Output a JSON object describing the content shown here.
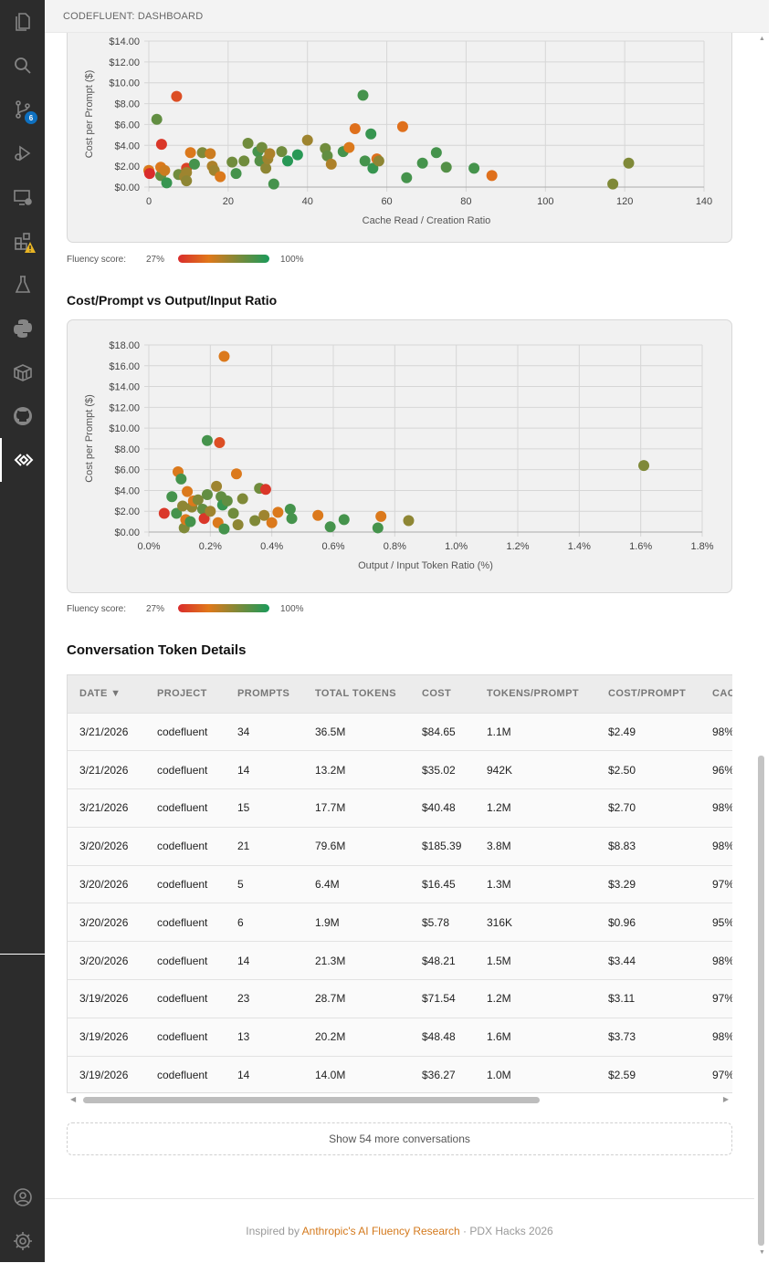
{
  "tab": {
    "title": "CODEFLUENT: DASHBOARD"
  },
  "activity_bar": {
    "icons": [
      "files-icon",
      "search-icon",
      "source-control-icon",
      "run-debug-icon",
      "remote-explorer-icon",
      "extensions-icon",
      "testing-icon",
      "python-icon",
      "containers-icon",
      "github-icon",
      "codefluent-icon",
      "account-icon",
      "settings-gear-icon"
    ],
    "source_control_badge": "6"
  },
  "chart_cache": {
    "chart_data": {
      "type": "scatter",
      "title": "",
      "xlabel": "Cache Read / Creation Ratio",
      "ylabel": "Cost per Prompt ($)",
      "xlim": [
        0,
        140
      ],
      "ylim": [
        0,
        14
      ],
      "x_ticks": [
        "0",
        "20",
        "40",
        "60",
        "80",
        "100",
        "120",
        "140"
      ],
      "y_ticks": [
        "$0.00",
        "$2.00",
        "$4.00",
        "$6.00",
        "$8.00",
        "$10.00",
        "$12.00",
        "$14.00"
      ],
      "grid": true,
      "points": [
        {
          "x": 0,
          "y": 1.6,
          "f": 0.35
        },
        {
          "x": 0.2,
          "y": 1.3,
          "f": 0.0
        },
        {
          "x": 2,
          "y": 6.5,
          "f": 0.75
        },
        {
          "x": 3,
          "y": 1.1,
          "f": 0.75
        },
        {
          "x": 3,
          "y": 1.9,
          "f": 0.35
        },
        {
          "x": 3.2,
          "y": 4.1,
          "f": 0.05
        },
        {
          "x": 4,
          "y": 1.6,
          "f": 0.4
        },
        {
          "x": 4.5,
          "y": 0.4,
          "f": 0.9
        },
        {
          "x": 7,
          "y": 8.7,
          "f": 0.15
        },
        {
          "x": 7.5,
          "y": 1.2,
          "f": 0.7
        },
        {
          "x": 9,
          "y": 1.0,
          "f": 0.55
        },
        {
          "x": 9.5,
          "y": 1.8,
          "f": 0.1
        },
        {
          "x": 9.5,
          "y": 1.4,
          "f": 0.55
        },
        {
          "x": 9.5,
          "y": 0.6,
          "f": 0.6
        },
        {
          "x": 10.5,
          "y": 3.3,
          "f": 0.35
        },
        {
          "x": 11.5,
          "y": 2.2,
          "f": 0.85
        },
        {
          "x": 13.5,
          "y": 3.3,
          "f": 0.65
        },
        {
          "x": 15.5,
          "y": 3.2,
          "f": 0.4
        },
        {
          "x": 16,
          "y": 2.0,
          "f": 0.5
        },
        {
          "x": 16.5,
          "y": 1.6,
          "f": 0.55
        },
        {
          "x": 18,
          "y": 1.0,
          "f": 0.35
        },
        {
          "x": 21,
          "y": 2.4,
          "f": 0.7
        },
        {
          "x": 22,
          "y": 1.3,
          "f": 0.85
        },
        {
          "x": 24,
          "y": 2.5,
          "f": 0.7
        },
        {
          "x": 25,
          "y": 4.2,
          "f": 0.7
        },
        {
          "x": 27.5,
          "y": 3.4,
          "f": 0.85
        },
        {
          "x": 28,
          "y": 2.5,
          "f": 0.8
        },
        {
          "x": 28.5,
          "y": 3.8,
          "f": 0.7
        },
        {
          "x": 29.5,
          "y": 1.8,
          "f": 0.6
        },
        {
          "x": 30,
          "y": 2.7,
          "f": 0.55
        },
        {
          "x": 30.5,
          "y": 3.2,
          "f": 0.5
        },
        {
          "x": 31.5,
          "y": 0.3,
          "f": 0.85
        },
        {
          "x": 33.5,
          "y": 3.4,
          "f": 0.7
        },
        {
          "x": 35,
          "y": 2.5,
          "f": 0.95
        },
        {
          "x": 37.5,
          "y": 3.1,
          "f": 0.95
        },
        {
          "x": 40,
          "y": 4.5,
          "f": 0.55
        },
        {
          "x": 44.5,
          "y": 3.7,
          "f": 0.7
        },
        {
          "x": 45,
          "y": 3.0,
          "f": 0.75
        },
        {
          "x": 46,
          "y": 2.2,
          "f": 0.5
        },
        {
          "x": 49,
          "y": 3.4,
          "f": 0.85
        },
        {
          "x": 50.5,
          "y": 3.8,
          "f": 0.35
        },
        {
          "x": 52,
          "y": 5.6,
          "f": 0.3
        },
        {
          "x": 54,
          "y": 8.8,
          "f": 0.85
        },
        {
          "x": 54.5,
          "y": 2.5,
          "f": 0.85
        },
        {
          "x": 56,
          "y": 5.1,
          "f": 0.9
        },
        {
          "x": 56.5,
          "y": 1.8,
          "f": 0.9
        },
        {
          "x": 57.5,
          "y": 2.7,
          "f": 0.3
        },
        {
          "x": 58,
          "y": 2.5,
          "f": 0.6
        },
        {
          "x": 64,
          "y": 5.8,
          "f": 0.3
        },
        {
          "x": 65,
          "y": 0.9,
          "f": 0.85
        },
        {
          "x": 69,
          "y": 2.3,
          "f": 0.85
        },
        {
          "x": 72.5,
          "y": 3.3,
          "f": 0.85
        },
        {
          "x": 75,
          "y": 1.9,
          "f": 0.8
        },
        {
          "x": 82,
          "y": 1.8,
          "f": 0.85
        },
        {
          "x": 86.5,
          "y": 1.1,
          "f": 0.3
        },
        {
          "x": 117,
          "y": 0.3,
          "f": 0.65
        },
        {
          "x": 121,
          "y": 2.3,
          "f": 0.65
        }
      ]
    },
    "legend": {
      "label": "Fluency score:",
      "low": "27%",
      "high": "100%"
    }
  },
  "chart_ratio": {
    "chart_data": {
      "type": "scatter",
      "title": "Cost/Prompt vs Output/Input Ratio",
      "xlabel": "Output / Input Token Ratio (%)",
      "ylabel": "Cost per Prompt ($)",
      "xlim": [
        0,
        1.8
      ],
      "ylim": [
        0,
        18
      ],
      "x_ticks": [
        "0.0%",
        "0.2%",
        "0.4%",
        "0.6%",
        "0.8%",
        "1.0%",
        "1.2%",
        "1.4%",
        "1.6%",
        "1.8%"
      ],
      "y_ticks": [
        "$0.00",
        "$2.00",
        "$4.00",
        "$6.00",
        "$8.00",
        "$10.00",
        "$12.00",
        "$14.00",
        "$16.00",
        "$18.00"
      ],
      "grid": true,
      "points": [
        {
          "x": 0.05,
          "y": 1.8,
          "f": 0.05
        },
        {
          "x": 0.075,
          "y": 3.4,
          "f": 0.85
        },
        {
          "x": 0.09,
          "y": 1.8,
          "f": 0.85
        },
        {
          "x": 0.095,
          "y": 5.8,
          "f": 0.35
        },
        {
          "x": 0.105,
          "y": 5.1,
          "f": 0.85
        },
        {
          "x": 0.11,
          "y": 2.5,
          "f": 0.6
        },
        {
          "x": 0.115,
          "y": 0.4,
          "f": 0.65
        },
        {
          "x": 0.12,
          "y": 1.2,
          "f": 0.35
        },
        {
          "x": 0.125,
          "y": 3.9,
          "f": 0.35
        },
        {
          "x": 0.135,
          "y": 1.0,
          "f": 0.85
        },
        {
          "x": 0.14,
          "y": 2.4,
          "f": 0.6
        },
        {
          "x": 0.145,
          "y": 3.0,
          "f": 0.35
        },
        {
          "x": 0.16,
          "y": 3.1,
          "f": 0.65
        },
        {
          "x": 0.175,
          "y": 2.2,
          "f": 0.75
        },
        {
          "x": 0.18,
          "y": 1.3,
          "f": 0.05
        },
        {
          "x": 0.19,
          "y": 8.8,
          "f": 0.85
        },
        {
          "x": 0.19,
          "y": 3.6,
          "f": 0.75
        },
        {
          "x": 0.2,
          "y": 2.0,
          "f": 0.55
        },
        {
          "x": 0.22,
          "y": 4.4,
          "f": 0.55
        },
        {
          "x": 0.225,
          "y": 0.9,
          "f": 0.35
        },
        {
          "x": 0.23,
          "y": 8.6,
          "f": 0.15
        },
        {
          "x": 0.235,
          "y": 3.4,
          "f": 0.75
        },
        {
          "x": 0.24,
          "y": 2.6,
          "f": 0.9
        },
        {
          "x": 0.245,
          "y": 16.9,
          "f": 0.35
        },
        {
          "x": 0.245,
          "y": 0.3,
          "f": 0.85
        },
        {
          "x": 0.255,
          "y": 3.0,
          "f": 0.75
        },
        {
          "x": 0.275,
          "y": 1.8,
          "f": 0.7
        },
        {
          "x": 0.285,
          "y": 5.6,
          "f": 0.35
        },
        {
          "x": 0.29,
          "y": 0.7,
          "f": 0.6
        },
        {
          "x": 0.305,
          "y": 3.2,
          "f": 0.65
        },
        {
          "x": 0.345,
          "y": 1.1,
          "f": 0.65
        },
        {
          "x": 0.36,
          "y": 4.2,
          "f": 0.7
        },
        {
          "x": 0.38,
          "y": 4.1,
          "f": 0.05
        },
        {
          "x": 0.375,
          "y": 1.6,
          "f": 0.55
        },
        {
          "x": 0.4,
          "y": 0.9,
          "f": 0.35
        },
        {
          "x": 0.42,
          "y": 1.9,
          "f": 0.35
        },
        {
          "x": 0.46,
          "y": 2.2,
          "f": 0.85
        },
        {
          "x": 0.465,
          "y": 1.3,
          "f": 0.85
        },
        {
          "x": 0.55,
          "y": 1.6,
          "f": 0.35
        },
        {
          "x": 0.59,
          "y": 0.5,
          "f": 0.85
        },
        {
          "x": 0.635,
          "y": 1.2,
          "f": 0.85
        },
        {
          "x": 0.745,
          "y": 0.4,
          "f": 0.85
        },
        {
          "x": 0.755,
          "y": 1.5,
          "f": 0.35
        },
        {
          "x": 0.845,
          "y": 1.1,
          "f": 0.6
        },
        {
          "x": 1.61,
          "y": 6.4,
          "f": 0.65
        }
      ]
    },
    "legend": {
      "label": "Fluency score:",
      "low": "27%",
      "high": "100%"
    }
  },
  "table": {
    "title": "Conversation Token Details",
    "headers": [
      "DATE ▼",
      "PROJECT",
      "PROMPTS",
      "TOTAL TOKENS",
      "COST",
      "TOKENS/PROMPT",
      "COST/PROMPT",
      "CACHE"
    ],
    "rows": [
      [
        "3/21/2026",
        "codefluent",
        "34",
        "36.5M",
        "$84.65",
        "1.1M",
        "$2.49",
        "98%"
      ],
      [
        "3/21/2026",
        "codefluent",
        "14",
        "13.2M",
        "$35.02",
        "942K",
        "$2.50",
        "96%"
      ],
      [
        "3/21/2026",
        "codefluent",
        "15",
        "17.7M",
        "$40.48",
        "1.2M",
        "$2.70",
        "98%"
      ],
      [
        "3/20/2026",
        "codefluent",
        "21",
        "79.6M",
        "$185.39",
        "3.8M",
        "$8.83",
        "98%"
      ],
      [
        "3/20/2026",
        "codefluent",
        "5",
        "6.4M",
        "$16.45",
        "1.3M",
        "$3.29",
        "97%"
      ],
      [
        "3/20/2026",
        "codefluent",
        "6",
        "1.9M",
        "$5.78",
        "316K",
        "$0.96",
        "95%"
      ],
      [
        "3/20/2026",
        "codefluent",
        "14",
        "21.3M",
        "$48.21",
        "1.5M",
        "$3.44",
        "98%"
      ],
      [
        "3/19/2026",
        "codefluent",
        "23",
        "28.7M",
        "$71.54",
        "1.2M",
        "$3.11",
        "97%"
      ],
      [
        "3/19/2026",
        "codefluent",
        "13",
        "20.2M",
        "$48.48",
        "1.6M",
        "$3.73",
        "98%"
      ],
      [
        "3/19/2026",
        "codefluent",
        "14",
        "14.0M",
        "$36.27",
        "1.0M",
        "$2.59",
        "97%"
      ]
    ],
    "show_more": "Show 54 more conversations"
  },
  "footer": {
    "prefix": "Inspired by ",
    "link": "Anthropic's AI Fluency Research",
    "suffix": " · PDX Hacks 2026"
  },
  "colors": {
    "low": "#d92c2c",
    "mid": "#e0781a",
    "olive": "#7a8a3a",
    "high": "#1a9a5a",
    "link": "#d4791c"
  }
}
